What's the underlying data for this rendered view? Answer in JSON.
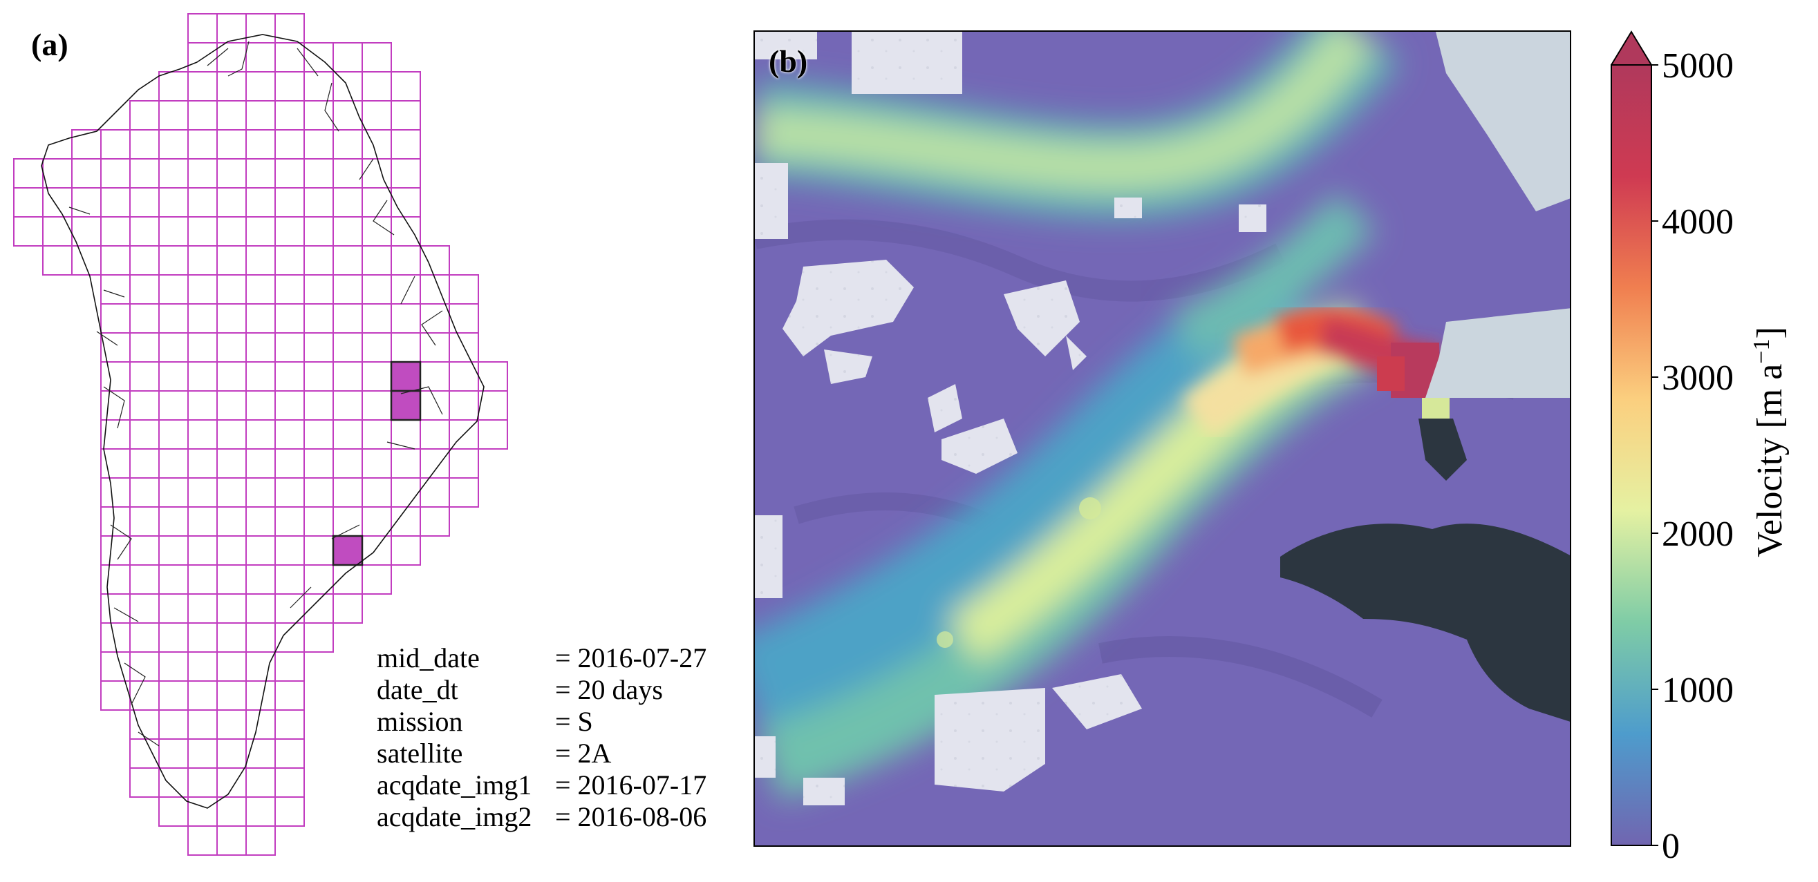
{
  "panel_a": {
    "label": "(a)",
    "grid_color": "#c23dc0",
    "highlight_color": "#c04cc0",
    "metadata": [
      {
        "key": "mid_date",
        "value": "= 2016-07-27"
      },
      {
        "key": "date_dt",
        "value": "= 20 days"
      },
      {
        "key": "mission",
        "value": "= S"
      },
      {
        "key": "satellite",
        "value": "= 2A"
      },
      {
        "key": "acqdate_img1",
        "value": "= 2016-07-17"
      },
      {
        "key": "acqdate_img2",
        "value": "= 2016-08-06"
      }
    ]
  },
  "panel_b": {
    "label": "(b)",
    "base_colors": {
      "ice": "#7467b6",
      "snow": "#e6e7ef",
      "sea_ice": "#c8d3dc",
      "rock": "#2b3540"
    }
  },
  "colorbar": {
    "title": "Velocity [m a",
    "title_exponent": "−1",
    "title_suffix": "]",
    "ticks": [
      "0",
      "1000",
      "2000",
      "3000",
      "4000",
      "5000"
    ],
    "tick_values": [
      0,
      1000,
      2000,
      3000,
      4000,
      5000
    ],
    "range": [
      0,
      5000
    ],
    "extend": "max",
    "colormap": "Spectral_r",
    "colors": [
      "#7165b0",
      "#4e9ccc",
      "#7fcca6",
      "#e5f1a2",
      "#fbcf7f",
      "#f07f50",
      "#cf3a52",
      "#b0395c"
    ]
  }
}
